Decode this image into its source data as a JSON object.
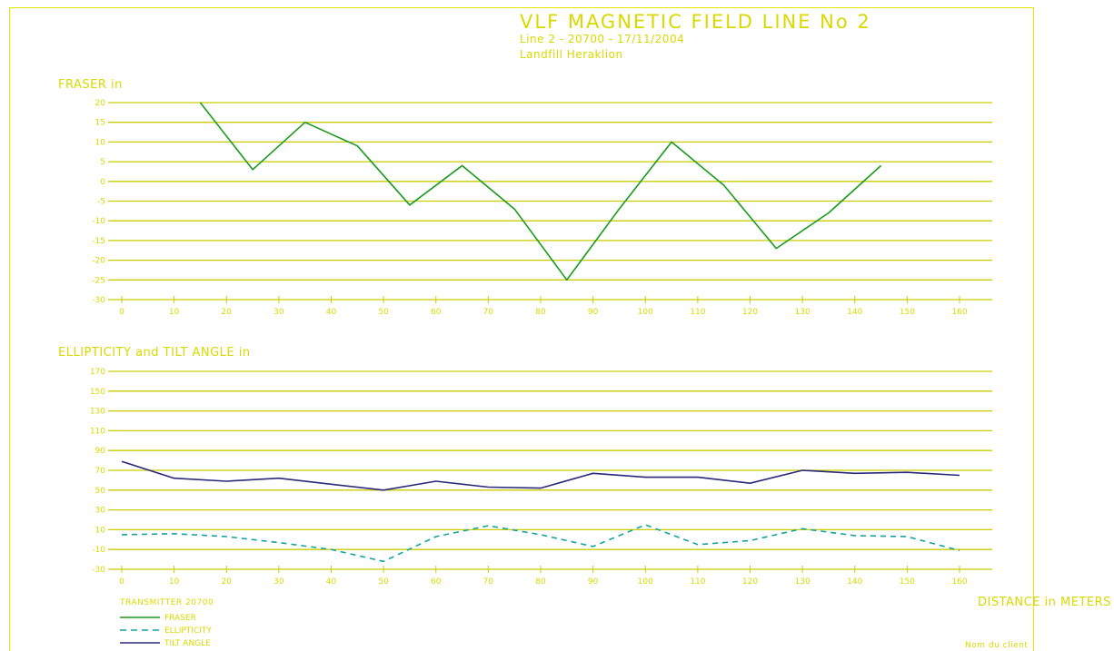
{
  "header": {
    "title": "VLF MAGNETIC FIELD LINE No  2",
    "subtitle": "Line 2 - 20700 - 17/11/2004",
    "site": "Landfill Heraklion"
  },
  "footer": {
    "transmitter": "TRANSMITTER 20700",
    "distance_label": "DISTANCE in METERS",
    "client": "Nom du client"
  },
  "colors": {
    "frame": "#e6e600",
    "grid": "#cccc00",
    "text": "#d9d900",
    "fraser": "#1a9a1a",
    "ellipticity": "#13a3a3",
    "tilt": "#2a2a7a"
  },
  "chart_data": [
    {
      "type": "line",
      "title": "FRASER in",
      "xlabel": "",
      "ylabel": "",
      "xlim": [
        0,
        160
      ],
      "ylim": [
        -30,
        20
      ],
      "yticks": [
        20,
        15,
        10,
        5,
        0,
        -5,
        -10,
        -15,
        -20,
        -25,
        -30
      ],
      "ytick_labels": [
        "20",
        "15",
        "10",
        "5",
        "0",
        "-5",
        "-10",
        "-15",
        "-20",
        "-25",
        "-30"
      ],
      "xticks": [
        0,
        10,
        20,
        30,
        40,
        50,
        60,
        70,
        80,
        90,
        100,
        110,
        120,
        130,
        140,
        150,
        160
      ],
      "grid": true,
      "series": [
        {
          "name": "FRASER",
          "style": "solid",
          "x": [
            15,
            25,
            35,
            45,
            55,
            65,
            75,
            85,
            95,
            105,
            115,
            125,
            135,
            145
          ],
          "values": [
            20,
            3,
            15,
            9,
            -6,
            4,
            -7,
            -25,
            -7,
            10,
            -1,
            -17,
            -8,
            4
          ]
        }
      ]
    },
    {
      "type": "line",
      "title": "ELLIPTICITY and TILT ANGLE in",
      "xlabel": "DISTANCE in METERS",
      "ylabel": "",
      "xlim": [
        0,
        160
      ],
      "ylim": [
        -30,
        170
      ],
      "yticks": [
        170,
        150,
        130,
        110,
        90,
        70,
        50,
        30,
        10,
        -10,
        -30
      ],
      "ytick_labels": [
        "170",
        "150",
        "130",
        "110",
        "90",
        "70",
        "50",
        "30",
        "10",
        "-10",
        "-30"
      ],
      "xticks": [
        0,
        10,
        20,
        30,
        40,
        50,
        60,
        70,
        80,
        90,
        100,
        110,
        120,
        130,
        140,
        150,
        160
      ],
      "grid": true,
      "series": [
        {
          "name": "TILT ANGLE",
          "style": "solid",
          "x": [
            0,
            10,
            20,
            30,
            40,
            50,
            60,
            70,
            80,
            90,
            100,
            110,
            120,
            130,
            140,
            150,
            160
          ],
          "values": [
            79,
            62,
            59,
            62,
            56,
            50,
            59,
            53,
            52,
            67,
            63,
            63,
            57,
            70,
            67,
            68,
            65
          ]
        },
        {
          "name": "ELLIPTICITY",
          "style": "dashed",
          "x": [
            0,
            10,
            20,
            30,
            40,
            50,
            60,
            70,
            80,
            90,
            100,
            110,
            120,
            130,
            140,
            150,
            160
          ],
          "values": [
            5,
            6,
            3,
            -3,
            -10,
            -22,
            3,
            14,
            5,
            -7,
            15,
            -5,
            -1,
            11,
            4,
            3,
            -11
          ]
        }
      ]
    }
  ]
}
